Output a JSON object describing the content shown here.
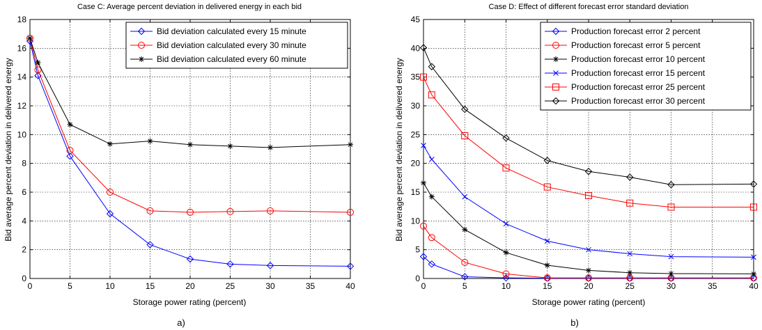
{
  "chart_data": [
    {
      "type": "line",
      "title": "Case C: Average percent deviation in delivered energy in each bid",
      "xlabel": "Storage power rating (percent)",
      "ylabel": "Bid average percent deviation in delivered energy",
      "xlim": [
        0,
        40
      ],
      "ylim": [
        0,
        18
      ],
      "xticks": [
        0,
        5,
        10,
        15,
        20,
        25,
        30,
        35,
        40
      ],
      "yticks": [
        0,
        2,
        4,
        6,
        8,
        10,
        12,
        14,
        16,
        18
      ],
      "grid": true,
      "legend_position": "top-right",
      "x": [
        0,
        1,
        5,
        10,
        15,
        20,
        25,
        30,
        40
      ],
      "series": [
        {
          "name": "Bid deviation calculated every 15 minute",
          "color": "#0000ff",
          "marker": "diamond",
          "values": [
            16.5,
            14.1,
            8.5,
            4.5,
            2.35,
            1.35,
            1.0,
            0.9,
            0.85
          ]
        },
        {
          "name": "Bid deviation calculated every 30 minute",
          "color": "#ff0000",
          "marker": "circle",
          "values": [
            16.7,
            14.5,
            8.9,
            6.0,
            4.7,
            4.6,
            4.65,
            4.7,
            4.6
          ]
        },
        {
          "name": "Bid deviation calculated every 60 minute",
          "color": "#000000",
          "marker": "asterisk",
          "values": [
            16.7,
            15.0,
            10.7,
            9.35,
            9.55,
            9.3,
            9.2,
            9.1,
            9.3
          ]
        }
      ],
      "caption": "a)"
    },
    {
      "type": "line",
      "title": "Case D: Effect of different forecast error standard deviation",
      "xlabel": "Storage power rating (percent)",
      "ylabel": "Bid average percent deviation in delivered energy",
      "xlim": [
        0,
        40
      ],
      "ylim": [
        0,
        45
      ],
      "xticks": [
        0,
        5,
        10,
        15,
        20,
        25,
        30,
        35,
        40
      ],
      "yticks": [
        0,
        5,
        10,
        15,
        20,
        25,
        30,
        35,
        40,
        45
      ],
      "grid": true,
      "legend_position": "top-right",
      "x": [
        0,
        1,
        5,
        10,
        15,
        20,
        25,
        30,
        40
      ],
      "series": [
        {
          "name": "Production forecast error 2 percent",
          "color": "#0000ff",
          "marker": "diamond",
          "values": [
            3.8,
            2.5,
            0.3,
            0.1,
            0.05,
            0.05,
            0.05,
            0.05,
            0.05
          ]
        },
        {
          "name": "Production forecast error 5 percent",
          "color": "#ff0000",
          "marker": "circle",
          "values": [
            9.1,
            7.1,
            2.8,
            0.8,
            0.1,
            0.1,
            0.1,
            0.1,
            0.1
          ]
        },
        {
          "name": "Production forecast error 10 percent",
          "color": "#000000",
          "marker": "asterisk",
          "values": [
            16.6,
            14.2,
            8.5,
            4.5,
            2.3,
            1.4,
            1.0,
            0.85,
            0.8
          ]
        },
        {
          "name": "Production forecast error 15 percent",
          "color": "#0000ff",
          "marker": "x",
          "values": [
            23.1,
            20.7,
            14.2,
            9.5,
            6.5,
            5.0,
            4.3,
            3.8,
            3.7
          ]
        },
        {
          "name": "Production forecast error 25 percent",
          "color": "#ff0000",
          "marker": "square",
          "values": [
            35.0,
            31.9,
            24.8,
            19.2,
            15.9,
            14.4,
            13.1,
            12.4,
            12.4
          ]
        },
        {
          "name": "Production forecast error 30 percent",
          "color": "#000000",
          "marker": "diamond",
          "values": [
            40.1,
            36.8,
            29.4,
            24.4,
            20.5,
            18.6,
            17.6,
            16.3,
            16.4
          ]
        }
      ],
      "caption": "b)"
    }
  ]
}
